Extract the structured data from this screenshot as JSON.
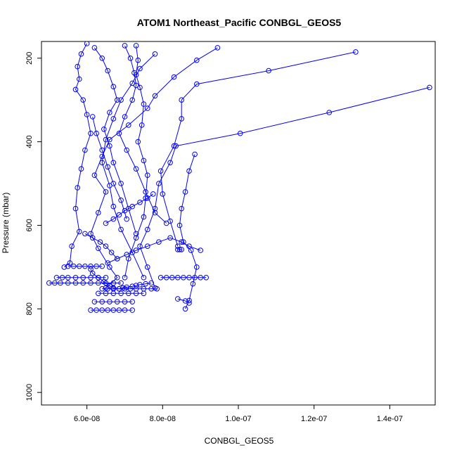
{
  "chart_data": {
    "type": "line",
    "title": "ATOM1 Northeast_Pacific CONBGL_GEOS5",
    "xlabel": "CONBGL_GEOS5",
    "ylabel": "Pressure (mbar)",
    "xlim": [
      4.8e-08,
      1.52e-07
    ],
    "ylim": [
      1030,
      160
    ],
    "x_reversed": false,
    "y_reversed": true,
    "x_ticks": [
      6e-08,
      8e-08,
      1e-07,
      1.2e-07,
      1.4e-07
    ],
    "x_tick_labels": [
      "6.0e-08",
      "8.0e-08",
      "1.0e-07",
      "1.2e-07",
      "1.4e-07"
    ],
    "y_ticks": [
      200,
      400,
      600,
      800,
      1000
    ],
    "y_tick_labels": [
      "200",
      "400",
      "600",
      "800",
      "1000"
    ],
    "grid": false,
    "legend": "none",
    "color": "#0000ff",
    "marker": "open-circle",
    "series": [
      {
        "x": [
          9.45e-08,
          8.9e-08,
          8.3e-08,
          7.8e-08,
          7.6e-08,
          7.1e-08,
          6.6e-08,
          6.4e-08,
          6.2e-08,
          6.5e-08,
          6.3e-08,
          6.1e-08,
          6.3e-08,
          6.6e-08,
          6.8e-08,
          6.5e-08
        ],
        "y": [
          175,
          205,
          245,
          290,
          320,
          360,
          395,
          435,
          480,
          520,
          570,
          620,
          655,
          700,
          725,
          750
        ]
      },
      {
        "x": [
          1.505e-07,
          1.24e-07,
          1.005e-07,
          8.35e-08,
          8.2e-08,
          7.9e-08,
          7.8e-08,
          7.6e-08,
          7.4e-08,
          7.6e-08,
          7.8e-08
        ],
        "y": [
          270,
          330,
          380,
          410,
          450,
          500,
          560,
          610,
          650,
          700,
          750
        ]
      },
      {
        "x": [
          1.31e-07,
          1.08e-07,
          8.9e-08,
          8.5e-08,
          8.5e-08,
          8.3e-08,
          7.95e-08,
          8e-08,
          8.2e-08,
          8.4e-08
        ],
        "y": [
          185,
          230,
          262,
          300,
          345,
          410,
          470,
          525,
          590,
          650
        ]
      },
      {
        "x": [
          7.8e-08,
          7.4e-08,
          7.2e-08,
          6.9e-08,
          6.7e-08,
          6.5e-08,
          6.4e-08,
          6.6e-08,
          6.7e-08,
          6.9e-08,
          7.2e-08,
          7.5e-08
        ],
        "y": [
          190,
          225,
          260,
          300,
          345,
          395,
          450,
          505,
          555,
          610,
          665,
          725
        ]
      },
      {
        "x": [
          7.3e-08,
          7.35e-08,
          7.3e-08,
          7.4e-08,
          7.5e-08,
          7.45e-08,
          7.35e-08,
          7.5e-08,
          7.6e-08,
          7.55e-08,
          7.5e-08,
          7.3e-08,
          7.1e-08,
          7e-08
        ],
        "y": [
          170,
          205,
          240,
          270,
          310,
          360,
          400,
          445,
          480,
          535,
          580,
          630,
          680,
          725
        ]
      },
      {
        "x": [
          6e-08,
          5.85e-08,
          5.75e-08,
          5.8e-08,
          5.7e-08,
          5.9e-08,
          6e-08,
          6.1e-08,
          5.95e-08,
          5.85e-08,
          5.75e-08,
          5.7e-08,
          5.8e-08,
          5.6e-08,
          5.55e-08,
          5.4e-08
        ],
        "y": [
          165,
          190,
          220,
          250,
          275,
          300,
          335,
          380,
          420,
          465,
          510,
          560,
          615,
          650,
          690,
          700
        ]
      },
      {
        "x": [
          6.2e-08,
          6.4e-08,
          6.55e-08,
          6.7e-08,
          6.8e-08,
          6.6e-08,
          6.45e-08,
          6.6e-08,
          6.7e-08,
          6.9e-08,
          7.1e-08,
          7.3e-08
        ],
        "y": [
          175,
          200,
          230,
          268,
          300,
          330,
          370,
          410,
          450,
          500,
          560,
          620
        ]
      },
      {
        "x": [
          7e-08,
          7.15e-08,
          7.25e-08,
          7.3e-08,
          7.2e-08,
          7e-08,
          6.85e-08,
          7.05e-08,
          7.3e-08,
          7.55e-08,
          7.8e-08,
          8.1e-08
        ],
        "y": [
          170,
          200,
          235,
          265,
          300,
          340,
          380,
          420,
          465,
          520,
          570,
          595
        ]
      },
      {
        "x": [
          8.85e-08,
          8.7e-08,
          8.6e-08,
          8.5e-08,
          8.45e-08,
          8.55e-08,
          8.75e-08,
          8.9e-08,
          8.8e-08,
          8.7e-08,
          8.6e-08
        ],
        "y": [
          430,
          470,
          520,
          560,
          600,
          640,
          660,
          700,
          740,
          780,
          800
        ]
      },
      {
        "x": [
          6.1e-08,
          6.15e-08,
          6.3e-08,
          6.45e-08,
          6.6e-08,
          6.7e-08,
          6.85e-08,
          6.95e-08,
          7.05e-08,
          7.2e-08,
          7.3e-08,
          7.4e-08,
          7.55e-08,
          7.7e-08
        ],
        "y": [
          705,
          715,
          725,
          735,
          745,
          750,
          752,
          750,
          748,
          746,
          744,
          742,
          740,
          738
        ]
      },
      {
        "x": [
          5e-08,
          5.15e-08,
          5.3e-08,
          5.5e-08,
          5.7e-08,
          5.9e-08,
          6.1e-08,
          6.3e-08,
          6.5e-08,
          6.7e-08,
          6.9e-08
        ],
        "y": [
          738,
          738,
          738,
          738,
          738,
          738,
          738,
          738,
          738,
          738,
          738
        ]
      },
      {
        "x": [
          7.95e-08,
          8.1e-08,
          8.25e-08,
          8.4e-08,
          8.55e-08,
          8.7e-08,
          8.85e-08,
          9e-08,
          9.15e-08
        ],
        "y": [
          725,
          725,
          725,
          725,
          725,
          725,
          725,
          725,
          725
        ]
      },
      {
        "x": [
          6.1e-08,
          6.25e-08,
          6.4e-08,
          6.55e-08,
          6.7e-08,
          6.85e-08,
          7e-08,
          7.2e-08
        ],
        "y": [
          803,
          803,
          803,
          803,
          803,
          803,
          803,
          803
        ]
      },
      {
        "x": [
          5.2e-08,
          5.35e-08,
          5.5e-08,
          5.7e-08,
          5.9e-08,
          6.1e-08,
          6.3e-08,
          6.5e-08
        ],
        "y": [
          725,
          725,
          725,
          725,
          725,
          725,
          725,
          725
        ]
      },
      {
        "x": [
          5.5e-08,
          5.65e-08,
          5.8e-08,
          5.95e-08,
          6.1e-08,
          6.25e-08,
          6.4e-08
        ],
        "y": [
          698,
          698,
          698,
          698,
          698,
          698,
          698
        ]
      },
      {
        "x": [
          6.4e-08,
          6.55e-08,
          6.7e-08,
          6.85e-08,
          7e-08,
          7.15e-08,
          7.3e-08,
          7.5e-08,
          7.7e-08,
          7.85e-08
        ],
        "y": [
          752,
          752,
          752,
          752,
          752,
          752,
          752,
          752,
          752,
          752
        ]
      },
      {
        "x": [
          6.2e-08,
          6.4e-08,
          6.6e-08,
          6.8e-08,
          7e-08,
          7.2e-08
        ],
        "y": [
          783,
          783,
          783,
          783,
          783,
          783
        ]
      },
      {
        "x": [
          6.3e-08,
          6.5e-08,
          6.7e-08,
          6.9e-08,
          7.1e-08,
          7.3e-08,
          7.5e-08
        ],
        "y": [
          763,
          763,
          763,
          763,
          763,
          763,
          763
        ]
      },
      {
        "x": [
          8.4e-08,
          8.45e-08,
          8.5e-08
        ],
        "y": [
          658,
          658,
          658
        ]
      },
      {
        "x": [
          8.4e-08,
          8.6e-08,
          8.7e-08
        ],
        "y": [
          776,
          781,
          786
        ]
      },
      {
        "x": [
          6.55e-08,
          6.8e-08,
          7.05e-08,
          7.3e-08,
          7.6e-08,
          7.9e-08,
          8.2e-08,
          8.5e-08,
          8.7e-08,
          9e-08
        ],
        "y": [
          690,
          680,
          670,
          660,
          650,
          640,
          630,
          640,
          650,
          660
        ]
      },
      {
        "x": [
          6.5e-08,
          6.7e-08,
          6.85e-08,
          7e-08,
          7.2e-08,
          7.4e-08,
          7.6e-08,
          7.75e-08
        ],
        "y": [
          595,
          585,
          575,
          565,
          555,
          545,
          535,
          525
        ]
      },
      {
        "x": [
          5.95e-08,
          6.15e-08,
          6.35e-08,
          6.5e-08,
          6.65e-08,
          6.8e-08
        ],
        "y": [
          620,
          630,
          640,
          650,
          665,
          680
        ]
      },
      {
        "x": [
          6.15e-08,
          6.25e-08,
          6.4e-08,
          6.55e-08,
          6.7e-08,
          6.9e-08,
          7.05e-08
        ],
        "y": [
          340,
          380,
          420,
          460,
          500,
          540,
          585
        ]
      }
    ]
  }
}
